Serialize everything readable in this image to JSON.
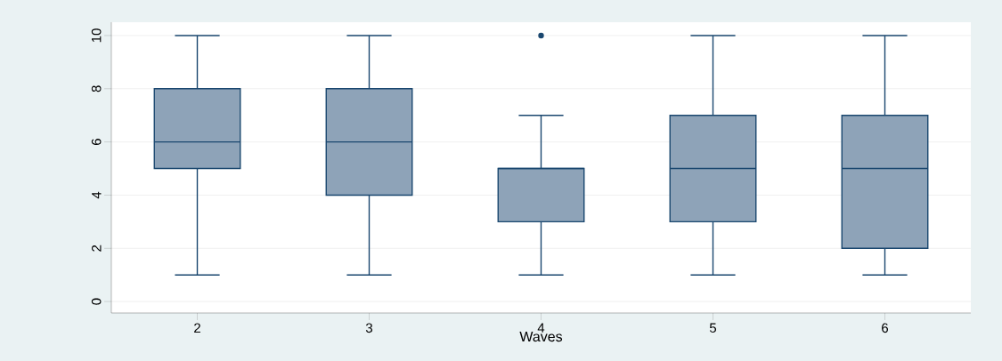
{
  "chart_data": {
    "type": "box",
    "xlabel": "Waves",
    "categories": [
      "2",
      "3",
      "4",
      "5",
      "6"
    ],
    "boxes": [
      {
        "low": 1,
        "q1": 5,
        "median": 6,
        "q3": 8,
        "high": 10
      },
      {
        "low": 1,
        "q1": 4,
        "median": 6,
        "q3": 8,
        "high": 10
      },
      {
        "low": 1,
        "q1": 3,
        "median": 5,
        "q3": 5,
        "high": 7,
        "outliers": [
          10
        ]
      },
      {
        "low": 1,
        "q1": 3,
        "median": 5,
        "q3": 7,
        "high": 10
      },
      {
        "low": 1,
        "q1": 2,
        "median": 5,
        "q3": 7,
        "high": 10
      }
    ],
    "color": "#8ea3b8",
    "ylim": [
      -0.43,
      10.5
    ],
    "yticks": [
      0,
      2,
      4,
      6,
      8,
      10
    ],
    "grid": "y"
  }
}
